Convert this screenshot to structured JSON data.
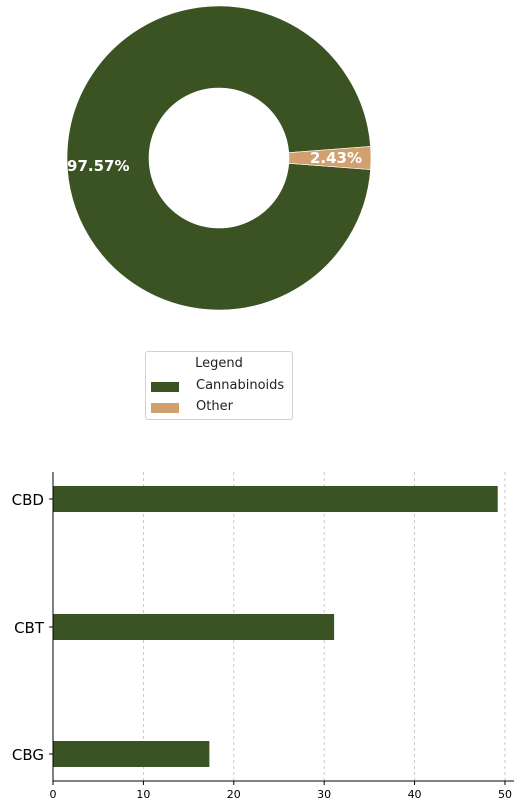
{
  "colors": {
    "cannabinoids": "#3b5323",
    "other": "#d2a06e",
    "grid": "#bbbbbb",
    "axis": "#000000"
  },
  "legend": {
    "title": "Legend",
    "items": [
      {
        "label": "Cannabinoids",
        "color": "#3b5323"
      },
      {
        "label": "Other",
        "color": "#d2a06e"
      }
    ]
  },
  "chart_data": [
    {
      "type": "pie",
      "style": "donut",
      "labels": [
        "Cannabinoids",
        "Other"
      ],
      "values": [
        97.57,
        2.43
      ],
      "data_labels": [
        "97.57%",
        "2.43%"
      ],
      "colors": [
        "#3b5323",
        "#d2a06e"
      ],
      "legend_position": "below"
    },
    {
      "type": "bar",
      "orientation": "horizontal",
      "categories": [
        "CBD",
        "CBT",
        "CBG"
      ],
      "values": [
        49.2,
        31.1,
        17.3
      ],
      "color": "#3b5323",
      "xlim": [
        0,
        51
      ],
      "xticks": [
        0,
        10,
        20,
        30,
        40,
        50
      ],
      "grid": "vertical-dashed"
    }
  ]
}
